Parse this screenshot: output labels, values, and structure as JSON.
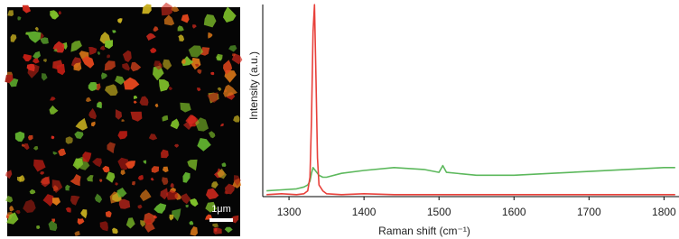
{
  "image": {
    "scale_bar": "1μm"
  },
  "chart_data": {
    "type": "line",
    "x_label": "Raman shift (cm⁻¹)",
    "y_label": "Intensity (a.u.)",
    "x": [
      1270,
      1290,
      1310,
      1320,
      1325,
      1328,
      1330,
      1332,
      1334,
      1336,
      1338,
      1340,
      1345,
      1350,
      1370,
      1400,
      1440,
      1480,
      1500,
      1505,
      1510,
      1550,
      1600,
      1650,
      1700,
      1750,
      1800,
      1815
    ],
    "series": [
      {
        "color": "#5cb85c",
        "values": [
          3,
          3.5,
          4,
          5,
          6,
          8,
          12,
          15,
          14,
          13,
          12,
          11,
          10,
          10,
          12,
          13.5,
          15,
          14,
          12.5,
          16,
          12.5,
          11,
          11,
          12,
          13,
          14,
          15,
          15
        ]
      },
      {
        "color": "#e8403a",
        "values": [
          1,
          1.5,
          1,
          1.5,
          3,
          10,
          40,
          85,
          99,
          60,
          20,
          6,
          3,
          1.5,
          1,
          1.5,
          1,
          1,
          1,
          1,
          1,
          1,
          1,
          1,
          1,
          1,
          1,
          1
        ]
      }
    ],
    "xlim": [
      1265,
      1820
    ],
    "ylim": [
      0,
      100
    ],
    "xticks": [
      1300,
      1400,
      1500,
      1600,
      1700,
      1800
    ]
  }
}
